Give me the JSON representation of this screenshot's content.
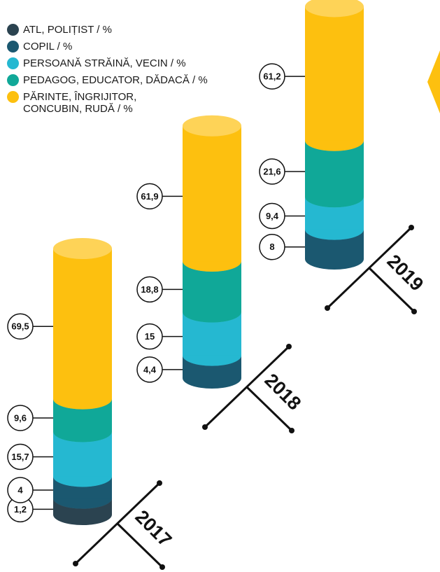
{
  "chart_data": {
    "type": "stacked-cylinder",
    "categories": [
      "2017",
      "2018",
      "2019"
    ],
    "series": [
      {
        "name": "ATL, POLIȚIST / %",
        "color": "#2b4350",
        "values": [
          1.2,
          null,
          null
        ],
        "value_labels": [
          "1,2",
          null,
          null
        ]
      },
      {
        "name": "COPIL / %",
        "color": "#1b5870",
        "values": [
          4,
          4.4,
          8
        ],
        "value_labels": [
          "4",
          "4,4",
          "8"
        ]
      },
      {
        "name": "PERSOANĂ STRĂINĂ, VECIN / %",
        "color": "#25b8d1",
        "values": [
          15.7,
          15,
          9.4
        ],
        "value_labels": [
          "15,7",
          "15",
          "9,4"
        ]
      },
      {
        "name": "PEDAGOG, EDUCATOR, DĂDACĂ / %",
        "color": "#10a898",
        "values": [
          9.6,
          18.8,
          21.6
        ],
        "value_labels": [
          "9,6",
          "18,8",
          "21,6"
        ]
      },
      {
        "name": "PĂRINTE, ÎNGRIJITOR, CONCUBIN, RUDĂ / %",
        "color": "#fdc00f",
        "values": [
          69.5,
          61.9,
          61.2
        ],
        "value_labels": [
          "69,5",
          "61,9",
          "61,2"
        ]
      }
    ]
  }
}
